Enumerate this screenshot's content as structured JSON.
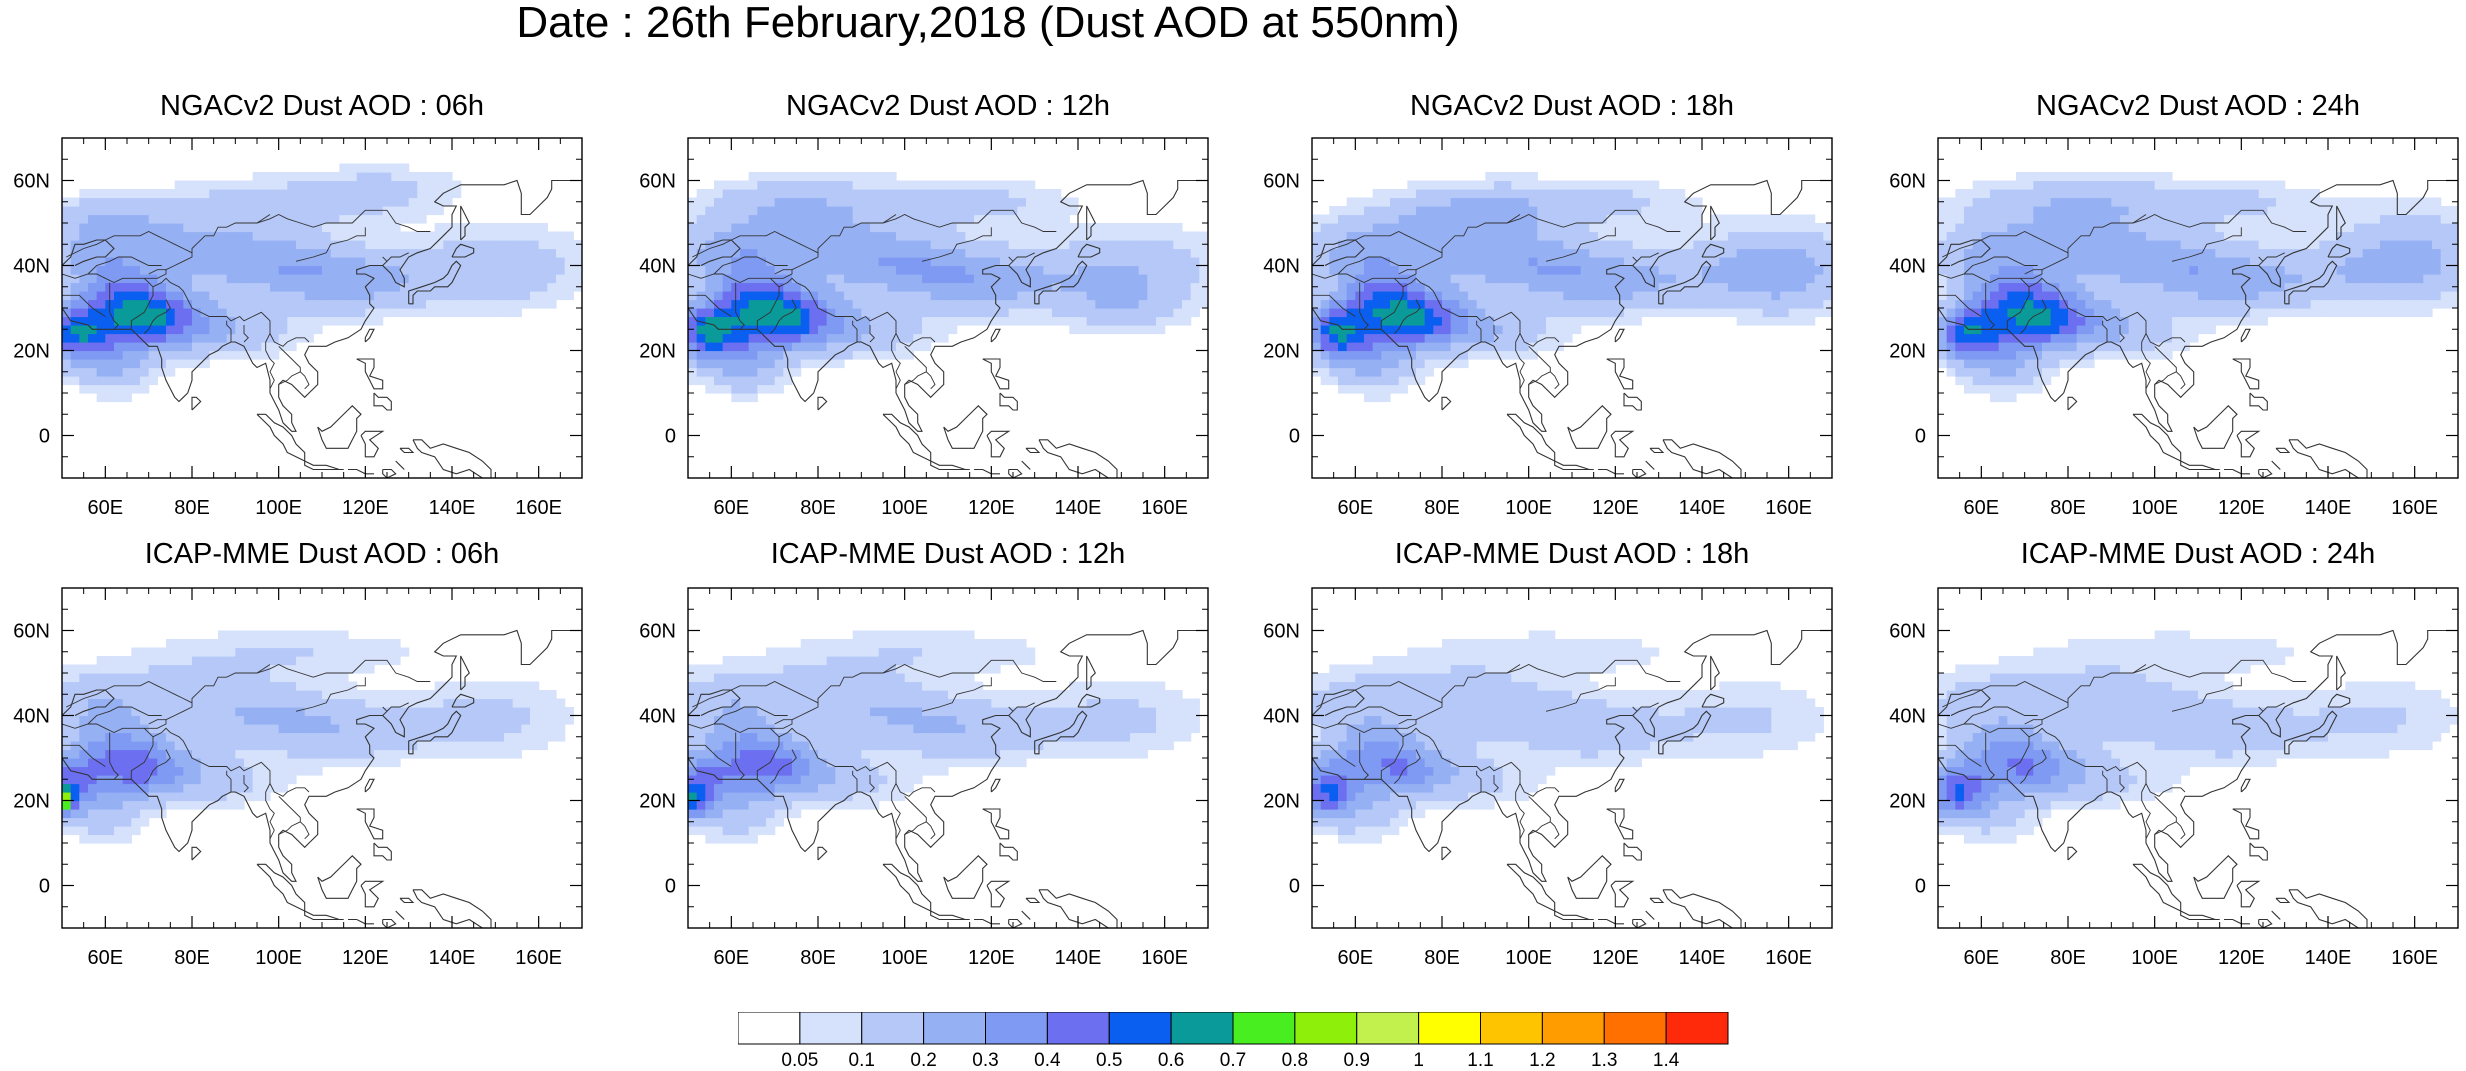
{
  "title": "Date : 26th February,2018 (Dust AOD at 550nm)",
  "panels": [
    {
      "title": "NGACv2 Dust AOD : 06h"
    },
    {
      "title": "NGACv2 Dust AOD : 12h"
    },
    {
      "title": "NGACv2 Dust AOD : 18h"
    },
    {
      "title": "NGACv2 Dust AOD : 24h"
    },
    {
      "title": "ICAP-MME Dust AOD : 06h"
    },
    {
      "title": "ICAP-MME Dust AOD : 12h"
    },
    {
      "title": "ICAP-MME Dust AOD : 18h"
    },
    {
      "title": "ICAP-MME Dust AOD : 24h"
    }
  ],
  "map": {
    "lon_range": [
      50,
      170
    ],
    "lat_range": [
      -10,
      70
    ],
    "lon_ticks": [
      "60E",
      "80E",
      "100E",
      "120E",
      "140E",
      "160E"
    ],
    "lat_ticks": [
      "0",
      "20N",
      "40N",
      "60N"
    ]
  },
  "colorbar": {
    "labels": [
      "0.05",
      "0.1",
      "0.2",
      "0.3",
      "0.4",
      "0.5",
      "0.6",
      "0.7",
      "0.8",
      "0.9",
      "1",
      "1.1",
      "1.2",
      "1.3",
      "1.4"
    ],
    "colors": [
      "#ffffff",
      "#d6e2fb",
      "#b5c8f7",
      "#96b0f4",
      "#7f9af2",
      "#6b6ff0",
      "#0a5ff0",
      "#0a9a9a",
      "#49ee21",
      "#8ef00a",
      "#c2f04c",
      "#ffff00",
      "#ffc400",
      "#ff9d00",
      "#ff7000",
      "#ff2a0a"
    ]
  }
}
